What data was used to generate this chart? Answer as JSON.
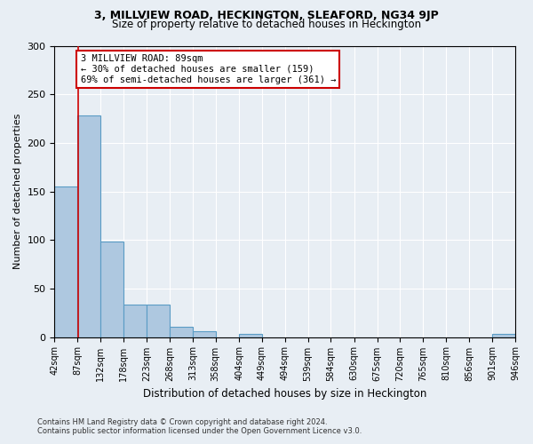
{
  "title": "3, MILLVIEW ROAD, HECKINGTON, SLEAFORD, NG34 9JP",
  "subtitle": "Size of property relative to detached houses in Heckington",
  "xlabel": "Distribution of detached houses by size in Heckington",
  "ylabel": "Number of detached properties",
  "bar_edges": [
    42,
    87,
    132,
    178,
    223,
    268,
    313,
    358,
    404,
    449,
    494,
    539,
    584,
    630,
    675,
    720,
    765,
    810,
    856,
    901,
    946
  ],
  "bar_heights": [
    155,
    228,
    98,
    33,
    33,
    11,
    6,
    0,
    3,
    0,
    0,
    0,
    0,
    0,
    0,
    0,
    0,
    0,
    0,
    3
  ],
  "bar_color": "#aec8e0",
  "bar_edge_color": "#5a9cc5",
  "property_size": 89,
  "annotation_text": "3 MILLVIEW ROAD: 89sqm\n← 30% of detached houses are smaller (159)\n69% of semi-detached houses are larger (361) →",
  "annotation_box_color": "#ffffff",
  "annotation_box_edge": "#cc0000",
  "vline_color": "#cc0000",
  "vline_x": 89,
  "ylim": [
    0,
    300
  ],
  "yticks": [
    0,
    50,
    100,
    150,
    200,
    250,
    300
  ],
  "footnote": "Contains HM Land Registry data © Crown copyright and database right 2024.\nContains public sector information licensed under the Open Government Licence v3.0.",
  "bg_color": "#e8eef4",
  "plot_bg_color": "#e8eef4"
}
